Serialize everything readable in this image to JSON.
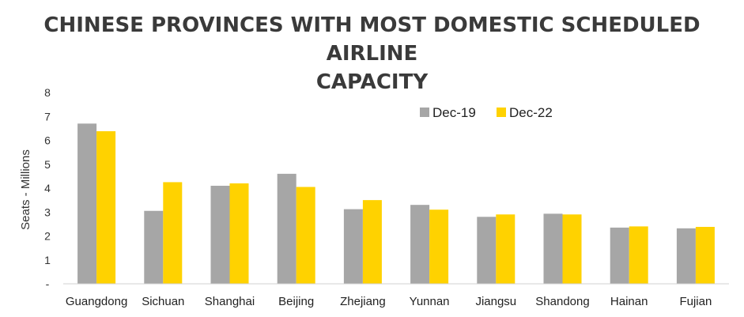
{
  "chart_data": {
    "type": "bar",
    "title_lines": [
      "CHINESE PROVINCES WITH MOST DOMESTIC SCHEDULED AIRLINE",
      "CAPACITY"
    ],
    "ylabel": "Seats - Millions",
    "xlabel": "",
    "ylim": [
      0,
      8
    ],
    "y_ticks": [
      "-",
      "1",
      "2",
      "3",
      "4",
      "5",
      "6",
      "7",
      "8"
    ],
    "categories": [
      "Guangdong",
      "Sichuan",
      "Shanghai",
      "Beijing",
      "Zhejiang",
      "Yunnan",
      "Jiangsu",
      "Shandong",
      "Hainan",
      "Fujian"
    ],
    "series": [
      {
        "name": "Dec-19",
        "color": "#a6a6a6",
        "values": [
          6.7,
          3.05,
          4.1,
          4.6,
          3.12,
          3.3,
          2.8,
          2.93,
          2.35,
          2.32
        ]
      },
      {
        "name": "Dec-22",
        "color": "#ffd200",
        "values": [
          6.38,
          4.25,
          4.2,
          4.05,
          3.5,
          3.1,
          2.9,
          2.9,
          2.4,
          2.38
        ]
      }
    ],
    "legend_position": "top-right",
    "grid": false
  }
}
